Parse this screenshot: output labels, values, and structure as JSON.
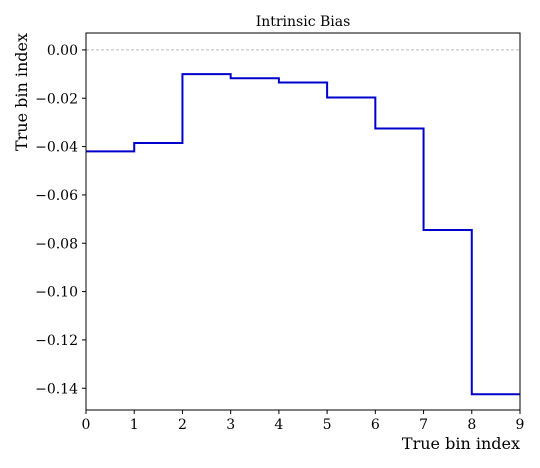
{
  "chart_data": {
    "type": "line",
    "drawstyle": "steps-post",
    "title": "Intrinsic Bias",
    "xlabel": "True bin index",
    "ylabel": "True bin index",
    "xlim": [
      0,
      9
    ],
    "ylim": [
      -0.149,
      0.007
    ],
    "xticks": [
      0,
      1,
      2,
      3,
      4,
      5,
      6,
      7,
      8,
      9
    ],
    "yticks": [
      0.0,
      -0.02,
      -0.04,
      -0.06,
      -0.08,
      -0.1,
      -0.12,
      -0.14
    ],
    "ytick_labels": [
      "0.00",
      "−0.02",
      "−0.04",
      "−0.06",
      "−0.08",
      "−0.10",
      "−0.12",
      "−0.14"
    ],
    "reference_line": {
      "y": 0.0,
      "style": "dashed",
      "color": "#bbbbbb"
    },
    "series": [
      {
        "color": "#0000cc",
        "x": [
          0,
          1,
          2,
          3,
          4,
          5,
          6,
          7,
          8,
          9
        ],
        "values": [
          -0.042,
          -0.0385,
          -0.01,
          -0.0117,
          -0.0135,
          -0.0197,
          -0.0325,
          -0.0745,
          -0.1425,
          -0.1425
        ]
      }
    ],
    "grid": false
  }
}
